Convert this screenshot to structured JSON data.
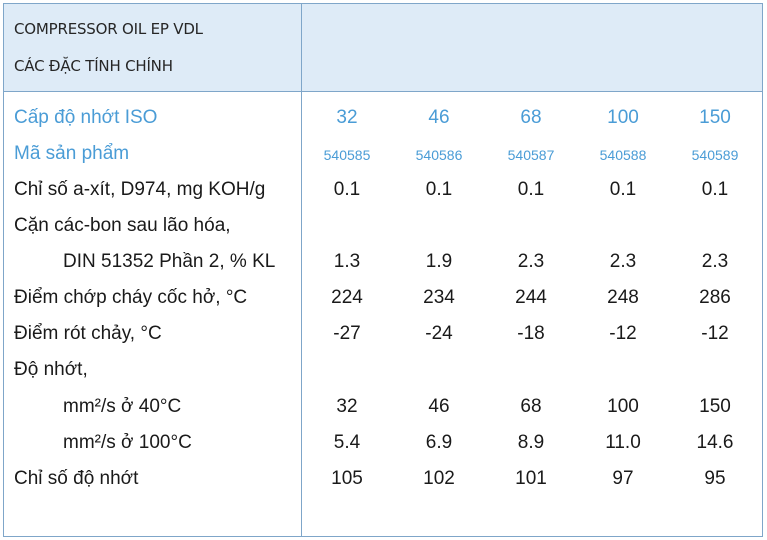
{
  "header": {
    "line1": "COMPRESSOR OIL EP VDL",
    "line2": "CÁC ĐẶC TÍNH CHÍNH"
  },
  "rows": [
    {
      "label": "Cấp độ nhớt ISO",
      "values": [
        "32",
        "46",
        "68",
        "100",
        "150"
      ]
    },
    {
      "label": "Mã sản phẩm",
      "values": [
        "540585",
        "540586",
        "540587",
        "540588",
        "540589"
      ]
    },
    {
      "label": "Chỉ số a-xít, D974,  mg KOH/g",
      "values": [
        "0.1",
        "0.1",
        "0.1",
        "0.1",
        "0.1"
      ]
    },
    {
      "label": "Cặn các-bon sau lão hóa,"
    },
    {
      "label": "DIN 51352 Phần 2, % KL",
      "values": [
        "1.3",
        "1.9",
        "2.3",
        "2.3",
        "2.3"
      ]
    },
    {
      "label": "Điểm chớp cháy cốc hở, °C",
      "values": [
        "224",
        "234",
        "244",
        "248",
        "286"
      ]
    },
    {
      "label": "Điểm rót chảy, °C",
      "values": [
        "-27",
        "-24",
        "-18",
        "-12",
        "-12"
      ]
    },
    {
      "label": "Độ nhớt,"
    },
    {
      "label": "mm²/s ở 40°C",
      "values": [
        "32",
        "46",
        "68",
        "100",
        "150"
      ]
    },
    {
      "label": "mm²/s ở 100°C",
      "values": [
        "5.4",
        "6.9",
        "8.9",
        "11.0",
        "14.6"
      ]
    },
    {
      "label": "Chỉ số độ nhớt",
      "values": [
        "105",
        "102",
        "101",
        "97",
        "95"
      ]
    }
  ],
  "colors": {
    "accent": "#4a9cd6",
    "header_bg": "#deebf7",
    "border": "#7fa6c9"
  }
}
